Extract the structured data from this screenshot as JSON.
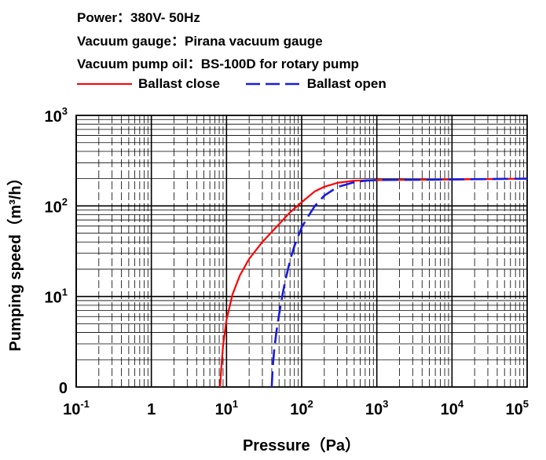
{
  "header": {
    "power": "Power：380V- 50Hz",
    "gauge": "Vacuum gauge：Pirana vacuum gauge",
    "oil": "Vacuum pump oil：BS-100D for rotary pump"
  },
  "colors": {
    "ballast_close": "#ff0000",
    "ballast_open": "#1a1adf",
    "grid": "#000000"
  },
  "chart_data": {
    "type": "line",
    "title": "",
    "xlabel": "Pressure（Pa）",
    "ylabel": "Pumping speed（m³/h）",
    "xscale": "log",
    "yscale": "log",
    "xlim": [
      0.1,
      100000
    ],
    "ylim": [
      1,
      1000
    ],
    "x_ticks": [
      {
        "base": "10",
        "exp": "-1"
      },
      {
        "base": "1",
        "exp": ""
      },
      {
        "base": "10",
        "exp": "1"
      },
      {
        "base": "10",
        "exp": "2"
      },
      {
        "base": "10",
        "exp": "3"
      },
      {
        "base": "10",
        "exp": "4"
      },
      {
        "base": "10",
        "exp": "5"
      }
    ],
    "y_ticks": [
      {
        "base": "0",
        "exp": ""
      },
      {
        "base": "10",
        "exp": "1"
      },
      {
        "base": "10",
        "exp": "2"
      },
      {
        "base": "10",
        "exp": "3"
      }
    ],
    "legend_position": "top",
    "series": [
      {
        "name": "Ballast close",
        "style": "solid",
        "x": [
          8.2,
          8.5,
          9,
          10,
          12,
          15,
          20,
          30,
          50,
          70,
          100,
          150,
          200,
          300,
          500,
          1000,
          2000,
          5000,
          10000,
          30000,
          100000
        ],
        "y": [
          1,
          1.6,
          2.9,
          5.5,
          10.5,
          17,
          26,
          40,
          63,
          85,
          110,
          145,
          163,
          180,
          190,
          193,
          194,
          195,
          196,
          198,
          200
        ]
      },
      {
        "name": "Ballast open",
        "style": "dashed",
        "x": [
          40,
          41,
          43,
          46,
          50,
          55,
          60,
          70,
          80,
          100,
          120,
          150,
          200,
          300,
          500,
          700,
          1000,
          2000,
          5000,
          10000,
          30000,
          100000
        ],
        "y": [
          1,
          1.6,
          2.5,
          4,
          6.3,
          10,
          14.5,
          25,
          36,
          58,
          75,
          100,
          130,
          162,
          183,
          190,
          193,
          194,
          195,
          196,
          198,
          200
        ]
      }
    ]
  }
}
